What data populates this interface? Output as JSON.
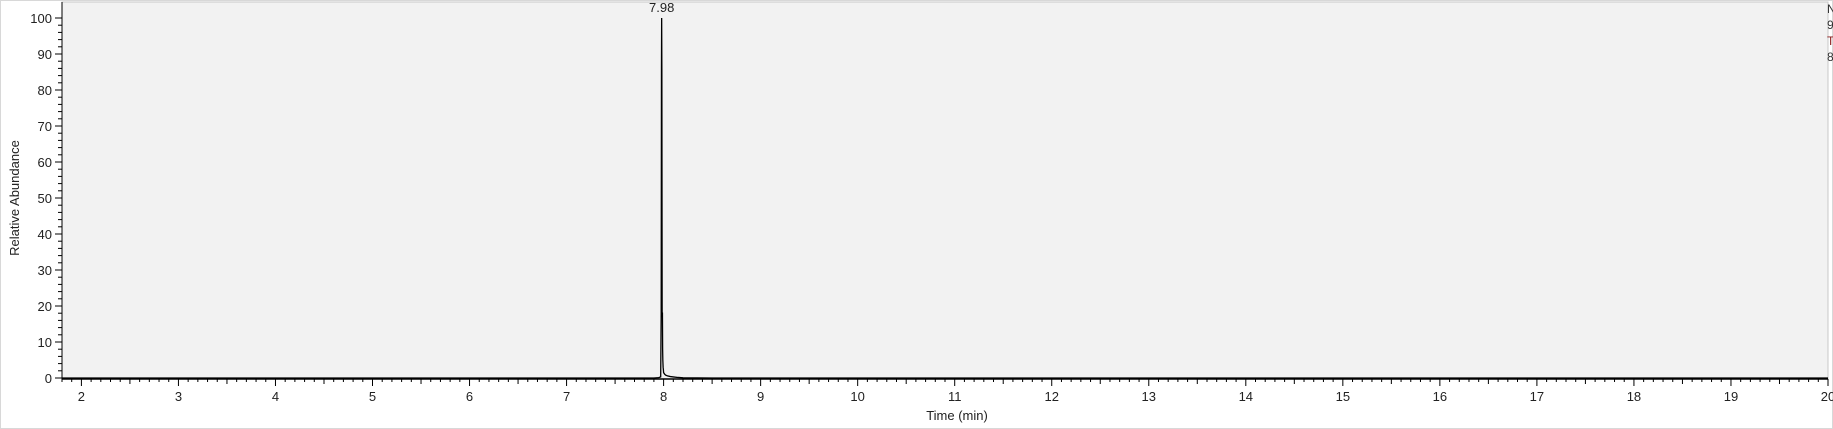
{
  "chart_data": {
    "type": "line",
    "title": "",
    "xlabel": "Time (min)",
    "ylabel": "Relative Abundance",
    "xlim": [
      1.8,
      20.0
    ],
    "ylim": [
      0,
      100
    ],
    "x_ticks": [
      2,
      3,
      4,
      5,
      6,
      7,
      8,
      9,
      10,
      11,
      12,
      13,
      14,
      15,
      16,
      17,
      18,
      19,
      20
    ],
    "x_tick_labels": [
      "2",
      "3",
      "4",
      "5",
      "6",
      "7",
      "8",
      "9",
      "10",
      "11",
      "12",
      "13",
      "14",
      "15",
      "16",
      "17",
      "18",
      "19",
      "20"
    ],
    "y_ticks": [
      0,
      10,
      20,
      30,
      40,
      50,
      60,
      70,
      80,
      90,
      100
    ],
    "y_tick_labels": [
      "0",
      "10",
      "20",
      "30",
      "40",
      "50",
      "60",
      "70",
      "80",
      "90",
      "100"
    ],
    "grid": false,
    "annotations": [
      {
        "x": 7.98,
        "y": 100,
        "text": "7.98"
      }
    ],
    "series": [
      {
        "x": [
          1.8,
          7.9,
          7.95,
          7.97,
          7.975,
          7.978,
          7.98,
          7.982,
          7.985,
          7.988,
          7.99,
          7.992,
          7.995,
          7.998,
          8.0,
          8.01,
          8.02,
          8.04,
          8.07,
          8.1,
          8.15,
          8.2,
          8.5,
          9.0,
          20.0
        ],
        "y": [
          0,
          0,
          0.1,
          0.3,
          18,
          86,
          100,
          86,
          18,
          18,
          8,
          5,
          3,
          2.2,
          1.5,
          1.1,
          0.8,
          0.6,
          0.4,
          0.3,
          0.15,
          0.05,
          0,
          0,
          0
        ]
      }
    ],
    "colors": {
      "trace": "#000000",
      "plot_background": "#f2f2f2",
      "axis": "#000000",
      "right_margin_text": "#8a1a1a"
    }
  },
  "right_margin_text": [
    "N",
    "9",
    "T",
    "8"
  ]
}
